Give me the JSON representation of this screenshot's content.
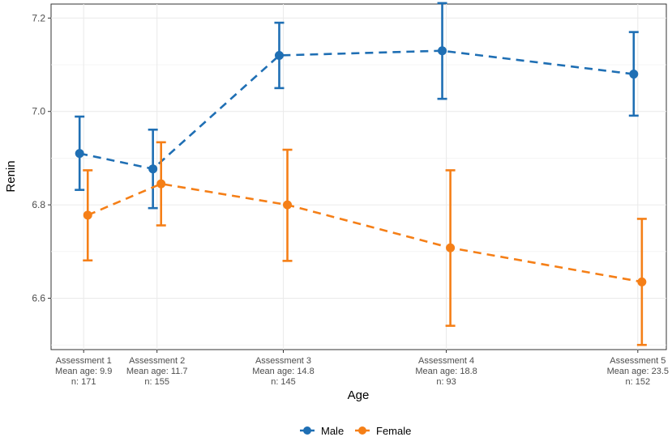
{
  "chart_data": {
    "type": "line",
    "xlabel": "Age",
    "ylabel": "Renin",
    "ylim": [
      6.49,
      7.23
    ],
    "yticks": [
      6.6,
      6.8,
      7.0,
      7.2
    ],
    "ytick_labels": [
      "6.6",
      "6.8",
      "7.0",
      "7.2"
    ],
    "x": [
      9.9,
      11.7,
      14.8,
      18.8,
      23.5
    ],
    "xlim": [
      9.1,
      24.2
    ],
    "categories": [
      [
        "Assessment  1",
        "Mean age:  9.9",
        "n:  171"
      ],
      [
        "Assessment  2",
        "Mean age:  11.7",
        "n:  155"
      ],
      [
        "Assessment  3",
        "Mean age:  14.8",
        "n:  145"
      ],
      [
        "Assessment  4",
        "Mean age:  18.8",
        "n:  93"
      ],
      [
        "Assessment  5",
        "Mean age:  23.5",
        "n:  152"
      ]
    ],
    "series": [
      {
        "name": "Male",
        "color": "#1f6fb4",
        "dodge": -0.1,
        "values": [
          6.91,
          6.877,
          7.12,
          7.13,
          7.08
        ],
        "lower": [
          6.832,
          6.793,
          7.05,
          7.027,
          6.991
        ],
        "upper": [
          6.989,
          6.961,
          7.19,
          7.232,
          7.17
        ]
      },
      {
        "name": "Female",
        "color": "#f57f17",
        "dodge": 0.1,
        "values": [
          6.778,
          6.845,
          6.8,
          6.708,
          6.635
        ],
        "lower": [
          6.681,
          6.756,
          6.68,
          6.541,
          6.5
        ],
        "upper": [
          6.874,
          6.934,
          6.918,
          6.874,
          6.77
        ]
      }
    ],
    "legend": {
      "position": "bottom",
      "entries": [
        "Male",
        "Female"
      ]
    },
    "grid": true
  }
}
